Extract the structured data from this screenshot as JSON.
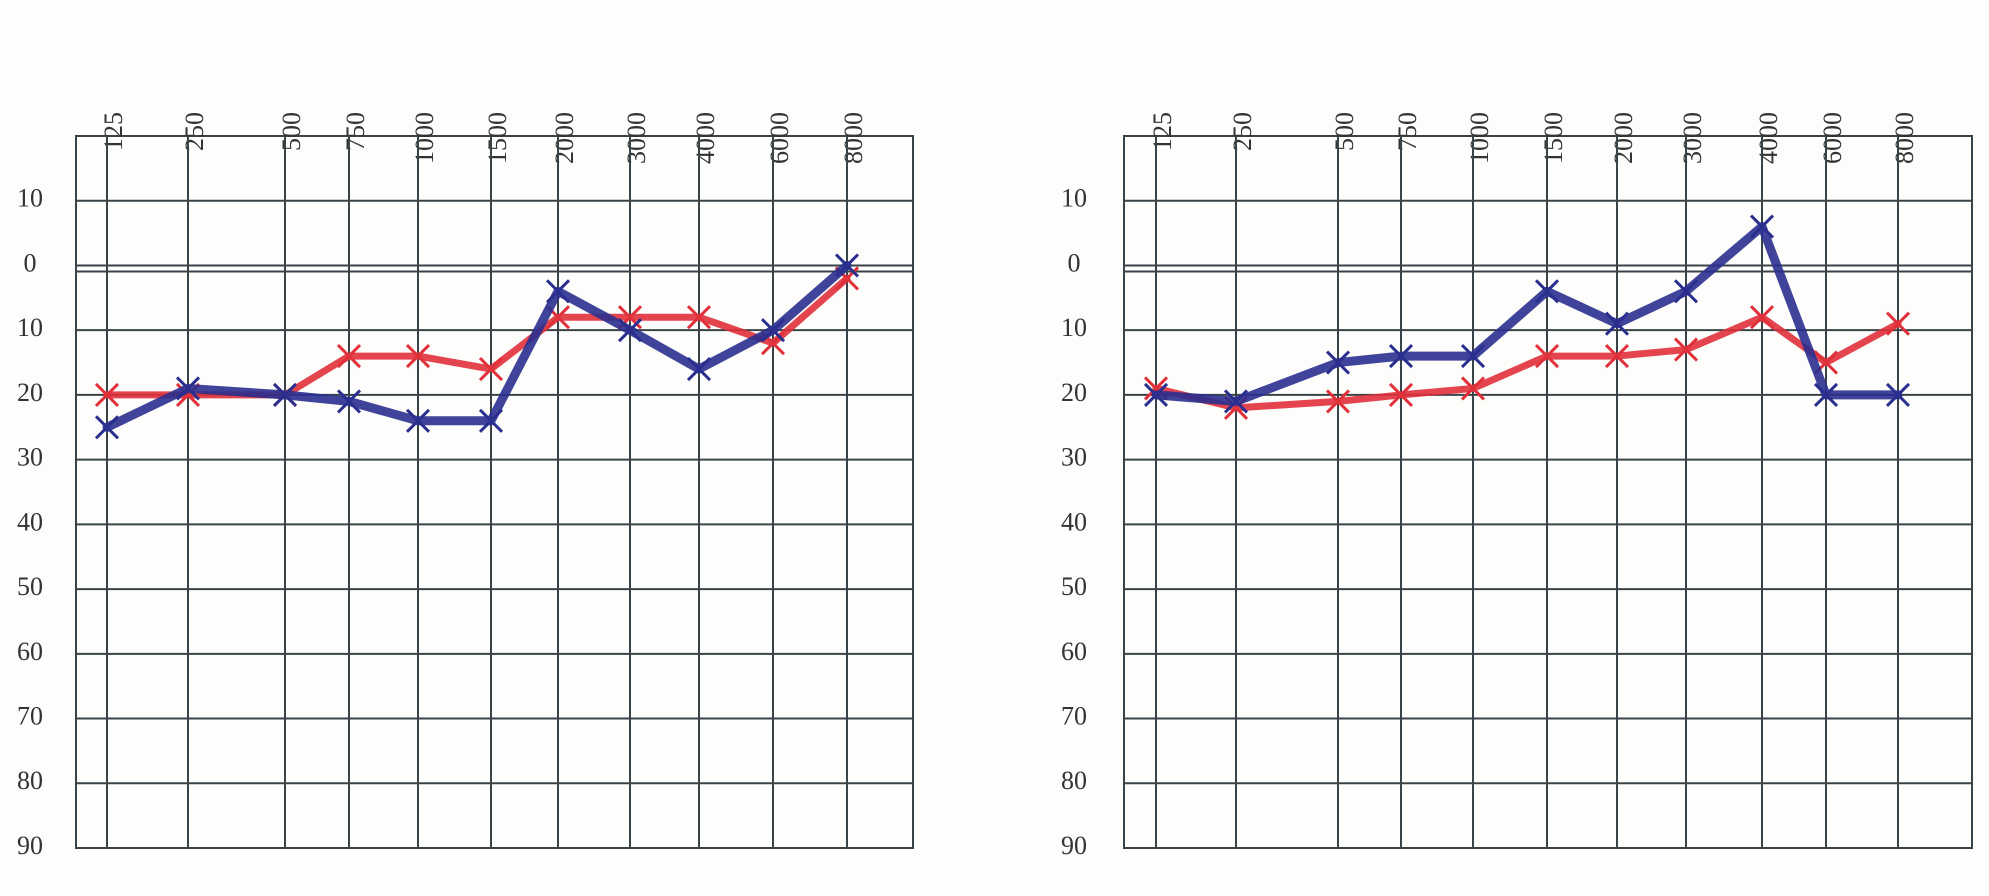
{
  "chart_data": [
    {
      "type": "line",
      "categories": [
        "125",
        "250",
        "500",
        "750",
        "1000",
        "1500",
        "2000",
        "3000",
        "4000",
        "6000",
        "8000"
      ],
      "series": [
        {
          "color": "#e0303a",
          "values": [
            20,
            20,
            20,
            14,
            14,
            16,
            8,
            8,
            8,
            12,
            2
          ]
        },
        {
          "color": "#2a2f8f",
          "values": [
            25,
            19,
            20,
            21,
            24,
            24,
            4,
            10,
            16,
            10,
            0
          ]
        }
      ],
      "ylim": [
        90,
        -20
      ],
      "yticks": [
        {
          "value": -10,
          "label": "10"
        },
        0,
        10,
        20,
        30,
        40,
        50,
        60,
        70,
        80,
        90
      ],
      "grid": true
    },
    {
      "type": "line",
      "categories": [
        "125",
        "250",
        "500",
        "750",
        "1000",
        "1500",
        "2000",
        "3000",
        "4000",
        "6000",
        "8000"
      ],
      "series": [
        {
          "color": "#e0303a",
          "values": [
            19,
            22,
            21,
            20,
            19,
            14,
            14,
            13,
            8,
            15,
            9
          ]
        },
        {
          "color": "#2a2f8f",
          "values": [
            20,
            21,
            15,
            14,
            14,
            4,
            9,
            4,
            -6,
            20,
            20
          ]
        }
      ],
      "ylim": [
        90,
        -20
      ],
      "yticks": [
        {
          "value": -10,
          "label": "10"
        },
        0,
        10,
        20,
        30,
        40,
        50,
        60,
        70,
        80,
        90
      ],
      "grid": true
    }
  ]
}
